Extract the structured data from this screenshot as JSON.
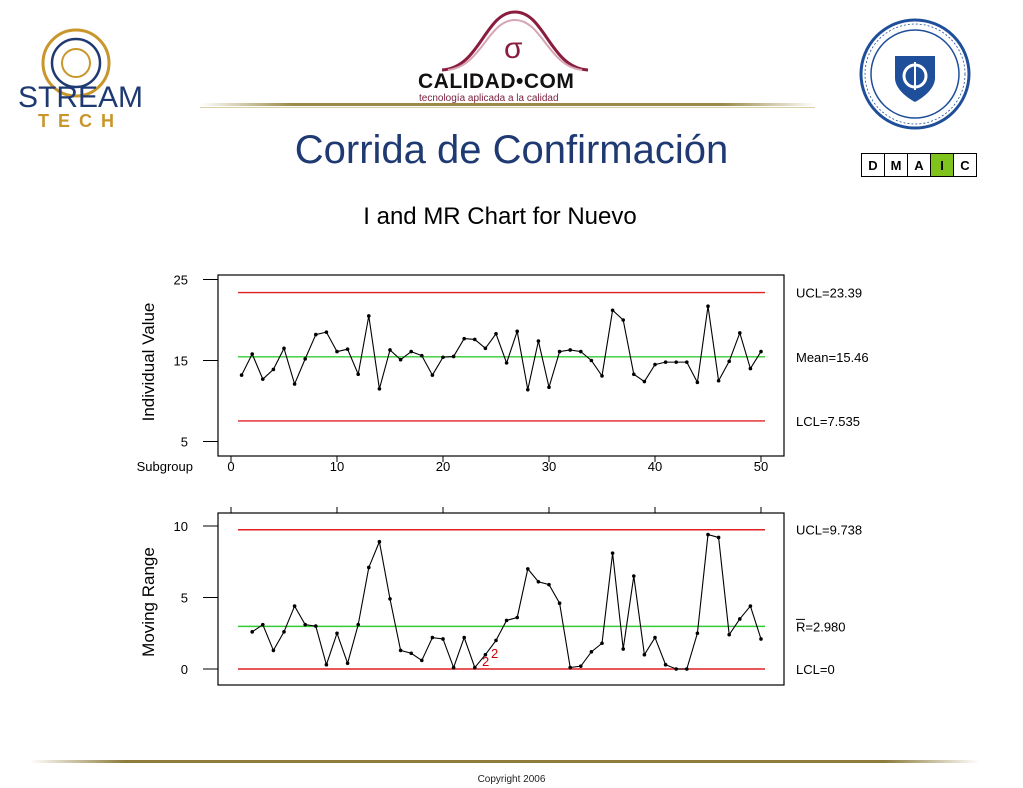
{
  "slide": {
    "title": "Corrida de Confirmación",
    "copyright": "Copyright 2006"
  },
  "logos": {
    "left": {
      "name": "StreamTech logo",
      "lines": [
        "STREAM",
        "TECH"
      ]
    },
    "center": {
      "symbol": "σ",
      "name": "CALIDAD•COM",
      "tagline": "tecnología aplicada a la calidad"
    },
    "right": {
      "name": "International Society of Six Sigma Professionals seal"
    }
  },
  "dmaic": {
    "letters": [
      "D",
      "M",
      "A",
      "I",
      "C"
    ],
    "active": "I",
    "active_color": "#7fc31c"
  },
  "colors": {
    "control_limits": "#e02020",
    "center_line": "#33cc33",
    "data_line": "#000000",
    "title": "#1f3a72",
    "flag": "#cc0000"
  },
  "chart_data": [
    {
      "type": "line",
      "title": "I and MR Chart for Nuevo",
      "ylabel": "Individual Value",
      "xlabel": "Subgroup",
      "xlim": [
        0,
        50
      ],
      "ylim": [
        5,
        25
      ],
      "xticks": [
        0,
        10,
        20,
        30,
        40,
        50
      ],
      "yticks": [
        5,
        15,
        25
      ],
      "x": [
        1,
        2,
        3,
        4,
        5,
        6,
        7,
        8,
        9,
        10,
        11,
        12,
        13,
        14,
        15,
        16,
        17,
        18,
        19,
        20,
        21,
        22,
        23,
        24,
        25,
        26,
        27,
        28,
        29,
        30,
        31,
        32,
        33,
        34,
        35,
        36,
        37,
        38,
        39,
        40,
        41,
        42,
        43,
        44,
        45,
        46,
        47,
        48,
        49,
        50
      ],
      "values": [
        13.2,
        15.8,
        12.7,
        13.9,
        16.5,
        12.1,
        15.2,
        18.2,
        18.5,
        16.1,
        16.4,
        13.3,
        20.5,
        11.5,
        16.3,
        15.1,
        16.1,
        15.6,
        13.2,
        15.4,
        15.5,
        17.7,
        17.6,
        16.5,
        18.3,
        14.7,
        18.6,
        11.4,
        17.4,
        11.7,
        16.1,
        16.3,
        16.1,
        15.0,
        13.1,
        21.2,
        20.0,
        13.3,
        12.4,
        14.5,
        14.8,
        14.8,
        14.8,
        12.3,
        21.7,
        12.5,
        14.9,
        18.4,
        14.0,
        16.1
      ],
      "control_limits": [
        {
          "label": "UCL=23.39",
          "value": 23.39
        },
        {
          "label": "Mean=15.46",
          "value": 15.46
        },
        {
          "label": "LCL=7.535",
          "value": 7.535
        }
      ],
      "grid": false
    },
    {
      "type": "line",
      "ylabel": "Moving Range",
      "xlim": [
        0,
        50
      ],
      "ylim": [
        0,
        10
      ],
      "yticks": [
        0,
        5,
        10
      ],
      "x": [
        2,
        3,
        4,
        5,
        6,
        7,
        8,
        9,
        10,
        11,
        12,
        13,
        14,
        15,
        16,
        17,
        18,
        19,
        20,
        21,
        22,
        23,
        24,
        25,
        26,
        27,
        28,
        29,
        30,
        31,
        32,
        33,
        34,
        35,
        36,
        37,
        38,
        39,
        40,
        41,
        42,
        43,
        44,
        45,
        46,
        47,
        48,
        49,
        50
      ],
      "values": [
        2.6,
        3.1,
        1.3,
        2.6,
        4.4,
        3.1,
        3.0,
        0.3,
        2.5,
        0.4,
        3.1,
        7.1,
        8.9,
        4.9,
        1.3,
        1.1,
        0.6,
        2.2,
        2.1,
        0.1,
        2.2,
        0.1,
        1.0,
        2.0,
        3.4,
        3.6,
        7.0,
        6.1,
        5.9,
        4.6,
        0.1,
        0.2,
        1.2,
        1.8,
        8.1,
        1.4,
        6.5,
        1.0,
        2.2,
        0.3,
        0.0,
        0.0,
        2.5,
        9.4,
        9.2,
        2.4,
        3.5,
        4.4,
        2.1
      ],
      "control_limits": [
        {
          "label": "UCL=9.738",
          "value": 9.738
        },
        {
          "label": "R=2.980",
          "value": 2.98
        },
        {
          "label": "LCL=0",
          "value": 0
        }
      ],
      "annotations": [
        "2",
        "2"
      ],
      "grid": false
    }
  ]
}
